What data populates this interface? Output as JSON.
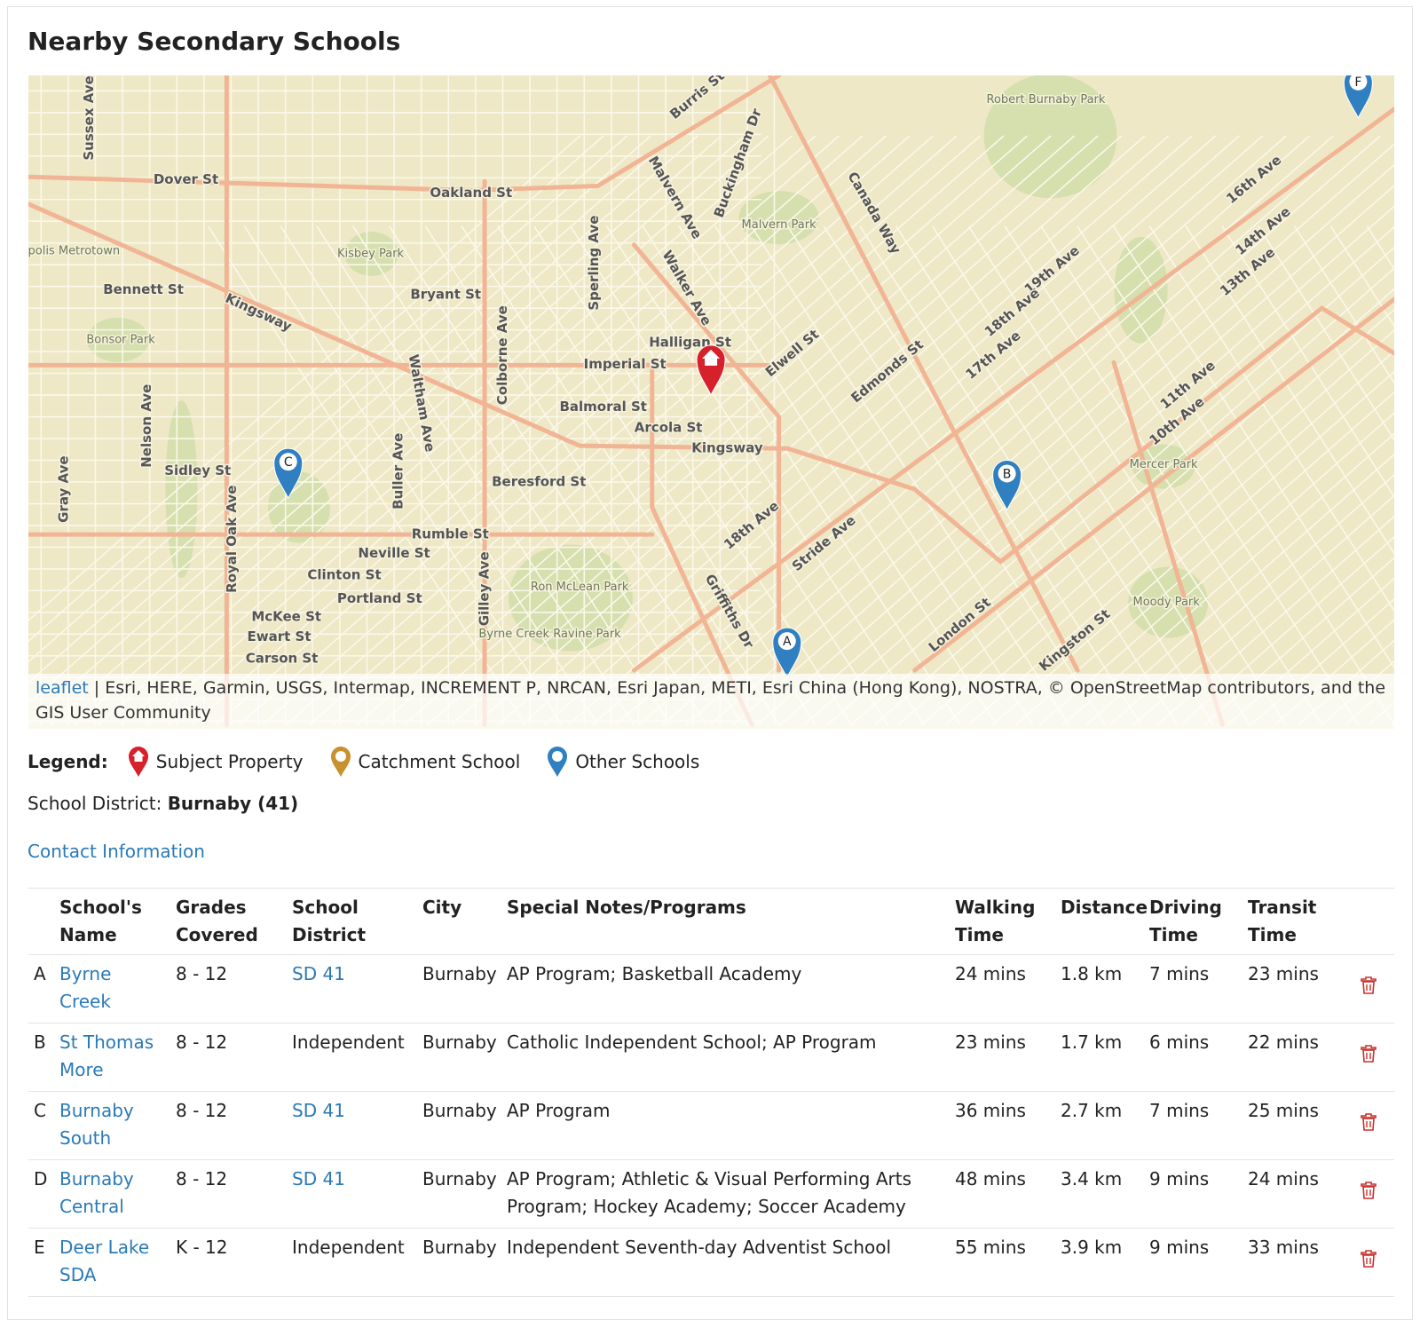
{
  "title": "Nearby Secondary Schools",
  "map": {
    "labels": [
      "Dover St",
      "Oakland St",
      "Bennett St",
      "Bryant St",
      "Kingsway",
      "Imperial St",
      "Halligan St",
      "Balmoral St",
      "Arcola St",
      "Kingsway",
      "Beresford St",
      "Sidley St",
      "Rumble St",
      "Neville St",
      "Clinton St",
      "Portland St",
      "McKee St",
      "Ewart St",
      "Carson St",
      "Edmonds St",
      "Elwell St",
      "Canada Way",
      "Walker Ave",
      "Malvern Ave",
      "Buckingham Dr",
      "Burris St",
      "Sperling Ave",
      "Colborne Ave",
      "Waltham Ave",
      "Buller Ave",
      "Nelson Ave",
      "Royal Oak Ave",
      "Gilley Ave",
      "Gray Ave",
      "Sussex Ave",
      "Griffiths Dr",
      "18th Ave",
      "Stride Ave",
      "10th Ave",
      "11th Ave",
      "16th Ave",
      "14th Ave",
      "13th Ave",
      "19th Ave",
      "18th Ave",
      "17th Ave",
      "Kingston St",
      "London St",
      "Robert Burnaby Park",
      "Malvern Park",
      "Kisbey Park",
      "Bonsor Park",
      "Ron McLean Park",
      "Byrne Creek Ravine Park",
      "Mercer Park",
      "Moody Park",
      "Metropolis Metrotown"
    ],
    "markers": [
      "A",
      "B",
      "C",
      "F"
    ],
    "attribution_link": "leaflet",
    "attribution": "| Esri, HERE, Garmin, USGS, Intermap, INCREMENT P, NRCAN, Esri Japan, METI, Esri China (Hong Kong), NOSTRA, © OpenStreetMap contributors, and the GIS User Community"
  },
  "legend": {
    "label": "Legend:",
    "items": [
      "Subject Property",
      "Catchment School",
      "Other Schools"
    ]
  },
  "district": {
    "label": "School District:",
    "value": "Burnaby (41)"
  },
  "contact": "Contact Information",
  "table": {
    "headers": [
      "School's Name",
      "Grades Covered",
      "School District",
      "City",
      "Special Notes/Programs",
      "Walking Time",
      "Distance",
      "Driving Time",
      "Transit Time"
    ],
    "rows": [
      [
        "A",
        "Byrne Creek",
        "8 - 12",
        "SD 41",
        "Burnaby",
        "AP Program; Basketball Academy",
        "24 mins",
        "1.8 km",
        "7 mins",
        "23 mins"
      ],
      [
        "B",
        "St Thomas More",
        "8 - 12",
        "Independent",
        "Burnaby",
        "Catholic Independent School; AP Program",
        "23 mins",
        "1.7 km",
        "6 mins",
        "22 mins"
      ],
      [
        "C",
        "Burnaby South",
        "8 - 12",
        "SD 41",
        "Burnaby",
        "AP Program",
        "36 mins",
        "2.7 km",
        "7 mins",
        "25 mins"
      ],
      [
        "D",
        "Burnaby Central",
        "8 - 12",
        "SD 41",
        "Burnaby",
        "AP Program; Athletic & Visual Performing Arts Program; Hockey Academy; Soccer Academy",
        "48 mins",
        "3.4 km",
        "9 mins",
        "24 mins"
      ],
      [
        "E",
        "Deer Lake SDA",
        "K - 12",
        "Independent",
        "Burnaby",
        "Independent Seventh-day Adventist School",
        "55 mins",
        "3.9 km",
        "9 mins",
        "33 mins"
      ]
    ]
  }
}
